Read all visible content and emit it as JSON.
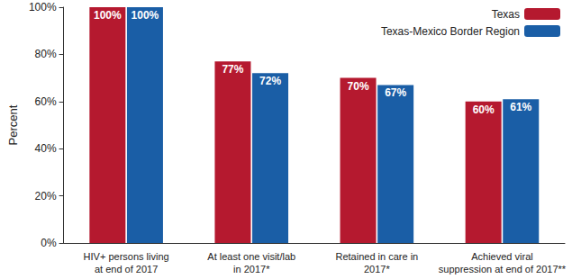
{
  "chart_data": {
    "type": "bar",
    "categories": [
      "HIV+ persons living\nat end of 2017",
      "At least one visit/lab\nin 2017*",
      "Retained in care in\n2017*",
      "Achieved viral\nsuppression at end of 2017**"
    ],
    "series": [
      {
        "name": "Texas",
        "color": "#b5192f",
        "values": [
          100,
          77,
          70,
          60
        ],
        "value_labels": [
          "100%",
          "77%",
          "70%",
          "60%"
        ]
      },
      {
        "name": "Texas-Mexico Border Region",
        "color": "#1a5ea6",
        "values": [
          100,
          72,
          67,
          61
        ],
        "value_labels": [
          "100%",
          "72%",
          "67%",
          "61%"
        ]
      }
    ],
    "y_label": "Percent",
    "ylim": [
      0,
      100
    ],
    "yticks": [
      {
        "value": 0,
        "label": "0%"
      },
      {
        "value": 20,
        "label": "20%"
      },
      {
        "value": 40,
        "label": "40%"
      },
      {
        "value": 60,
        "label": "60%"
      },
      {
        "value": 80,
        "label": "80%"
      },
      {
        "value": 100,
        "label": "100%"
      }
    ],
    "grid": false,
    "legend": "upper right",
    "data_labels": true
  }
}
